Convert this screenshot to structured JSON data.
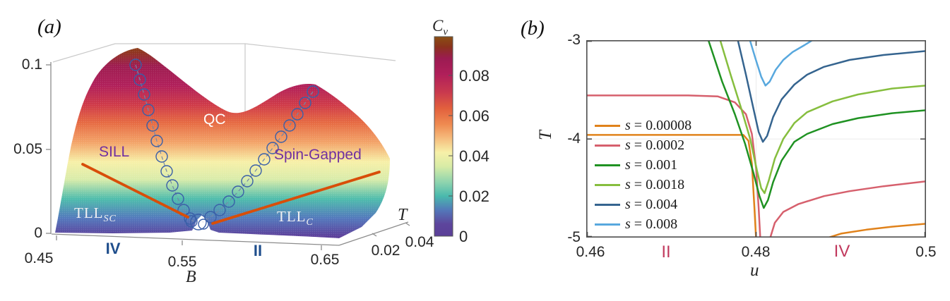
{
  "figure": {
    "panel_a_tag": "(a)",
    "panel_b_tag": "(b)"
  },
  "panel_a": {
    "z_ticks": [
      "0.1",
      "0.05",
      "0"
    ],
    "x_ticks": [
      "0.45",
      "0.55",
      "0.65"
    ],
    "x_label": "B",
    "t_ticks": [
      "0.02",
      "0.04"
    ],
    "t_label": "T",
    "regions": {
      "qc": "QC",
      "sill": "SILL",
      "spin_gapped": "Spin-Gapped",
      "tll_sc": {
        "main": "TLL",
        "sub": "SC"
      },
      "tll_c": {
        "main": "TLL",
        "sub": "C"
      },
      "iv": "IV",
      "ii": "II"
    },
    "colorbar": {
      "title_main": "C",
      "title_sub": "v",
      "ticks": [
        "0.08",
        "0.06",
        "0.04",
        "0.02",
        "0"
      ]
    }
  },
  "panel_b": {
    "x_ticks": [
      "0.46",
      "0.48",
      "0.5"
    ],
    "y_ticks": [
      "-3",
      "-4",
      "-5"
    ],
    "x_label": "u",
    "y_label": "T",
    "phase_ii": "II",
    "phase_iv": "IV"
  },
  "colors": {
    "phase_boundary_orange": "#d84e09",
    "marker_circle_blue": "#3a5fa8",
    "region_label_purple": "#7030a0",
    "panel_a_phase_blue": "#1f4e8c",
    "panel_b_phase_red": "#c13a5e"
  },
  "chart_data": [
    {
      "panel": "a",
      "type": "surface",
      "title": "Specific heat Cv over magnetic field B and temperature T",
      "xlabel": "B",
      "x_range": [
        0.45,
        0.65
      ],
      "x_ticks": [
        0.45,
        0.55,
        0.65
      ],
      "ylabel": "T",
      "y_ticks": [
        0.02,
        0.04
      ],
      "zlabel": "Cv",
      "z_range": [
        0,
        0.1
      ],
      "z_ticks": [
        0,
        0.05,
        0.1
      ],
      "colorbar": {
        "label": "Cv",
        "ticks": [
          0,
          0.02,
          0.04,
          0.06,
          0.08
        ]
      },
      "features": {
        "peaks": [
          {
            "B": 0.47,
            "Cv": 0.1
          },
          {
            "B": 0.62,
            "Cv": 0.08
          }
        ],
        "valley_at_B": 0.56,
        "region_labels": [
          "SILL",
          "QC",
          "Spin-Gapped",
          "TLL_SC",
          "TLL_C",
          "IV",
          "II"
        ],
        "annotations": "two dashed chains of open circles trace phase boundaries down to the valley; two orange lines mark crossover on the front face"
      }
    },
    {
      "panel": "b",
      "type": "line",
      "xlabel": "u",
      "ylabel": "T",
      "xlim": [
        0.46,
        0.5
      ],
      "ylim": [
        -5,
        -3
      ],
      "x_ticks": [
        0.46,
        0.48,
        0.5
      ],
      "y_ticks": [
        -5,
        -4,
        -3
      ],
      "grid": {
        "x": [
          0.48
        ],
        "y": [
          -4
        ]
      },
      "legend_position": "lower-left, transparent",
      "series": [
        {
          "name": "s = 0.00008",
          "color": "#e0821b",
          "segments": [
            [
              [
                0.46,
                -3.96
              ],
              [
                0.47,
                -3.96
              ],
              [
                0.4785,
                -3.96
              ],
              [
                0.4791,
                -4.02
              ],
              [
                0.4795,
                -4.25
              ],
              [
                0.4798,
                -4.7
              ],
              [
                0.48,
                -5.02
              ]
            ],
            [
              [
                0.4878,
                -5.02
              ],
              [
                0.49,
                -4.96
              ],
              [
                0.493,
                -4.92
              ],
              [
                0.496,
                -4.89
              ],
              [
                0.5,
                -4.86
              ]
            ]
          ]
        },
        {
          "name": "s = 0.0002",
          "color": "#d6606d",
          "segments": [
            [
              [
                0.46,
                -3.56
              ],
              [
                0.472,
                -3.56
              ],
              [
                0.4755,
                -3.57
              ],
              [
                0.4775,
                -3.63
              ],
              [
                0.4788,
                -3.75
              ],
              [
                0.4795,
                -3.95
              ],
              [
                0.48,
                -4.3
              ],
              [
                0.4803,
                -4.7
              ],
              [
                0.4805,
                -5.02
              ]
            ],
            [
              [
                0.4816,
                -5.02
              ],
              [
                0.4822,
                -4.85
              ],
              [
                0.4832,
                -4.74
              ],
              [
                0.485,
                -4.66
              ],
              [
                0.488,
                -4.58
              ],
              [
                0.491,
                -4.53
              ],
              [
                0.495,
                -4.48
              ],
              [
                0.5,
                -4.43
              ]
            ]
          ]
        },
        {
          "name": "s = 0.001",
          "color": "#1f9222",
          "segments": [
            [
              [
                0.4743,
                -2.98
              ],
              [
                0.476,
                -3.42
              ],
              [
                0.4775,
                -3.75
              ],
              [
                0.4787,
                -4.05
              ],
              [
                0.4797,
                -4.35
              ],
              [
                0.4804,
                -4.58
              ],
              [
                0.4809,
                -4.7
              ],
              [
                0.4814,
                -4.62
              ],
              [
                0.482,
                -4.44
              ],
              [
                0.483,
                -4.22
              ],
              [
                0.4845,
                -4.03
              ],
              [
                0.486,
                -3.95
              ],
              [
                0.489,
                -3.85
              ],
              [
                0.492,
                -3.79
              ],
              [
                0.496,
                -3.74
              ],
              [
                0.5,
                -3.71
              ]
            ]
          ]
        },
        {
          "name": "s = 0.0018",
          "color": "#86be3e",
          "segments": [
            [
              [
                0.4757,
                -2.98
              ],
              [
                0.477,
                -3.35
              ],
              [
                0.4782,
                -3.68
              ],
              [
                0.4793,
                -4.0
              ],
              [
                0.4801,
                -4.32
              ],
              [
                0.4806,
                -4.5
              ],
              [
                0.481,
                -4.55
              ],
              [
                0.4815,
                -4.42
              ],
              [
                0.4822,
                -4.2
              ],
              [
                0.4832,
                -4.0
              ],
              [
                0.4845,
                -3.84
              ],
              [
                0.486,
                -3.73
              ],
              [
                0.489,
                -3.62
              ],
              [
                0.492,
                -3.55
              ],
              [
                0.496,
                -3.49
              ],
              [
                0.5,
                -3.46
              ]
            ]
          ]
        },
        {
          "name": "s = 0.004",
          "color": "#35648f",
          "segments": [
            [
              [
                0.4778,
                -2.98
              ],
              [
                0.4788,
                -3.35
              ],
              [
                0.4797,
                -3.7
              ],
              [
                0.4803,
                -3.93
              ],
              [
                0.4808,
                -4.03
              ],
              [
                0.4813,
                -3.97
              ],
              [
                0.482,
                -3.78
              ],
              [
                0.483,
                -3.6
              ],
              [
                0.4845,
                -3.45
              ],
              [
                0.486,
                -3.35
              ],
              [
                0.488,
                -3.27
              ],
              [
                0.491,
                -3.2
              ],
              [
                0.495,
                -3.15
              ],
              [
                0.5,
                -3.11
              ]
            ]
          ]
        },
        {
          "name": "s = 0.008",
          "color": "#58a8de",
          "segments": [
            [
              [
                0.4792,
                -2.98
              ],
              [
                0.4799,
                -3.18
              ],
              [
                0.4806,
                -3.37
              ],
              [
                0.4811,
                -3.46
              ],
              [
                0.4816,
                -3.42
              ],
              [
                0.4823,
                -3.3
              ],
              [
                0.4832,
                -3.2
              ],
              [
                0.4843,
                -3.12
              ],
              [
                0.4857,
                -3.05
              ],
              [
                0.487,
                -2.98
              ]
            ]
          ]
        }
      ]
    }
  ]
}
